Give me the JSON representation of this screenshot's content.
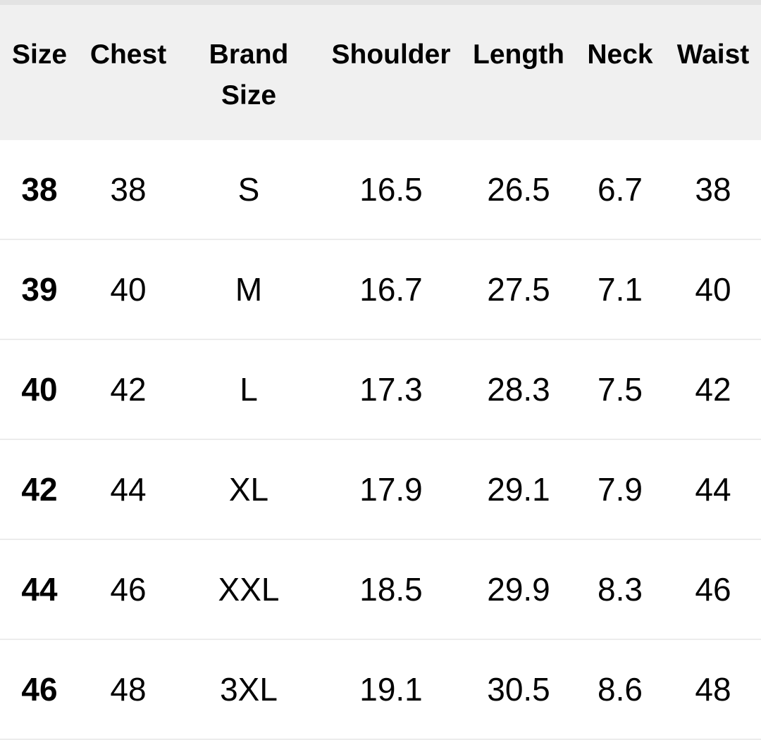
{
  "table": {
    "headers": [
      "Size",
      "Chest",
      "Brand\nSize",
      "Shoulder",
      "Length",
      "Neck",
      "Waist"
    ],
    "rows": [
      [
        "38",
        "38",
        "S",
        "16.5",
        "26.5",
        "6.7",
        "38"
      ],
      [
        "39",
        "40",
        "M",
        "16.7",
        "27.5",
        "7.1",
        "40"
      ],
      [
        "40",
        "42",
        "L",
        "17.3",
        "28.3",
        "7.5",
        "42"
      ],
      [
        "42",
        "44",
        "XL",
        "17.9",
        "29.1",
        "7.9",
        "44"
      ],
      [
        "44",
        "46",
        "XXL",
        "18.5",
        "29.9",
        "8.3",
        "46"
      ],
      [
        "46",
        "48",
        "3XL",
        "19.1",
        "30.5",
        "8.6",
        "48"
      ]
    ]
  },
  "colors": {
    "header_bg": "#f0f0f0",
    "divider": "#ececec",
    "text": "#000000"
  }
}
